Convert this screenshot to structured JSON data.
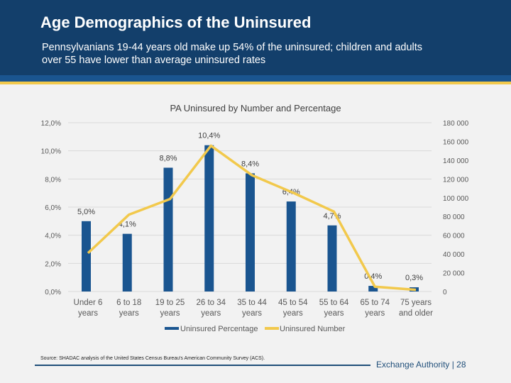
{
  "header": {
    "title": "Age Demographics of the Uninsured",
    "subtitle": "Pennsylvanians 19-44 years old make up 54% of the uninsured; children and adults over 55 have lower than average uninsured rates"
  },
  "footer": {
    "source": "Source: SHADAC analysis of the United States Census Bureau's American Community Survey (ACS).",
    "brand": "Exchange Authority  |  28"
  },
  "colors": {
    "header": "#133f6b",
    "bar": "#1a5590",
    "line": "#f2c94c"
  },
  "chart_data": {
    "type": "bar+line",
    "title": "PA Uninsured by Number and Percentage",
    "categories": [
      [
        "Under 6",
        "years"
      ],
      [
        "6 to 18",
        "years"
      ],
      [
        "19 to 25",
        "years"
      ],
      [
        "26 to 34",
        "years"
      ],
      [
        "35 to 44",
        "years"
      ],
      [
        "45 to 54",
        "years"
      ],
      [
        "55 to 64",
        "years"
      ],
      [
        "65 to 74",
        "years"
      ],
      [
        "75 years",
        "and older"
      ]
    ],
    "series": [
      {
        "name": "Uninsured Percentage",
        "type": "bar",
        "axis": "left",
        "values": [
          5.0,
          4.1,
          8.8,
          10.4,
          8.4,
          6.4,
          4.7,
          0.4,
          0.3
        ],
        "labels": [
          "5,0%",
          "4,1%",
          "8,8%",
          "10,4%",
          "8,4%",
          "6,4%",
          "4,7%",
          "0,4%",
          "0,3%"
        ]
      },
      {
        "name": "Uninsured Number",
        "type": "line",
        "axis": "right",
        "values": [
          41000,
          82000,
          98600,
          155500,
          124000,
          105400,
          85200,
          5100,
          1800
        ]
      }
    ],
    "left_axis": {
      "range": [
        0,
        12
      ],
      "ticks": [
        "0,0%",
        "2,0%",
        "4,0%",
        "6,0%",
        "8,0%",
        "10,0%",
        "12,0%"
      ]
    },
    "right_axis": {
      "range": [
        0,
        180000
      ],
      "ticks": [
        "0",
        "20 000",
        "40 000",
        "60 000",
        "80 000",
        "100 000",
        "120 000",
        "140 000",
        "160 000",
        "180 000"
      ]
    },
    "grid": true,
    "legend": "bottom"
  }
}
